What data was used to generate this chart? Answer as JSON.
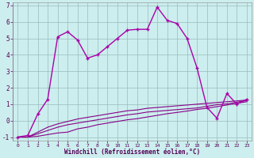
{
  "xlabel": "Windchill (Refroidissement éolien,°C)",
  "bg_color": "#cceedd",
  "plot_bg_color": "#cceeee",
  "line_color": "#aa00aa",
  "line_color2": "#880088",
  "grid_color": "#99bbbb",
  "xlim": [
    -0.5,
    23.5
  ],
  "ylim": [
    -1.2,
    7.2
  ],
  "xticks": [
    0,
    1,
    2,
    3,
    4,
    5,
    6,
    7,
    8,
    9,
    10,
    11,
    12,
    13,
    14,
    15,
    16,
    17,
    18,
    19,
    20,
    21,
    22,
    23
  ],
  "yticks": [
    -1,
    0,
    1,
    2,
    3,
    4,
    5,
    6,
    7
  ],
  "series_main": {
    "x": [
      0,
      1,
      2,
      3,
      4,
      5,
      6,
      7,
      8,
      9,
      10,
      11,
      12,
      13,
      14,
      15,
      16,
      17,
      18,
      19,
      20,
      21,
      22,
      23
    ],
    "y": [
      -1.0,
      -0.9,
      0.4,
      1.3,
      5.1,
      5.4,
      4.9,
      3.8,
      4.0,
      4.5,
      5.0,
      5.5,
      5.55,
      5.55,
      6.9,
      6.1,
      5.9,
      5.0,
      3.2,
      0.8,
      0.15,
      1.65,
      1.0,
      1.3
    ]
  },
  "series_flat": [
    {
      "x": [
        0,
        1,
        2,
        3,
        4,
        5,
        6,
        7,
        8,
        9,
        10,
        11,
        12,
        13,
        14,
        15,
        16,
        17,
        18,
        19,
        20,
        21,
        22,
        23
      ],
      "y": [
        -1.0,
        -1.0,
        -0.95,
        -0.85,
        -0.75,
        -0.7,
        -0.5,
        -0.4,
        -0.25,
        -0.15,
        -0.05,
        0.05,
        0.12,
        0.22,
        0.32,
        0.42,
        0.5,
        0.58,
        0.68,
        0.75,
        0.85,
        0.95,
        1.05,
        1.15
      ]
    },
    {
      "x": [
        0,
        1,
        2,
        3,
        4,
        5,
        6,
        7,
        8,
        9,
        10,
        11,
        12,
        13,
        14,
        15,
        16,
        17,
        18,
        19,
        20,
        21,
        22,
        23
      ],
      "y": [
        -1.0,
        -1.0,
        -0.8,
        -0.6,
        -0.4,
        -0.25,
        -0.15,
        -0.05,
        0.05,
        0.15,
        0.25,
        0.35,
        0.42,
        0.52,
        0.57,
        0.62,
        0.67,
        0.72,
        0.77,
        0.87,
        0.97,
        1.02,
        1.12,
        1.22
      ]
    },
    {
      "x": [
        0,
        1,
        2,
        3,
        4,
        5,
        6,
        7,
        8,
        9,
        10,
        11,
        12,
        13,
        14,
        15,
        16,
        17,
        18,
        19,
        20,
        21,
        22,
        23
      ],
      "y": [
        -1.0,
        -1.0,
        -0.7,
        -0.4,
        -0.2,
        -0.05,
        0.1,
        0.2,
        0.3,
        0.4,
        0.5,
        0.6,
        0.65,
        0.75,
        0.8,
        0.85,
        0.9,
        0.95,
        1.0,
        1.05,
        1.1,
        1.15,
        1.2,
        1.25
      ]
    }
  ]
}
